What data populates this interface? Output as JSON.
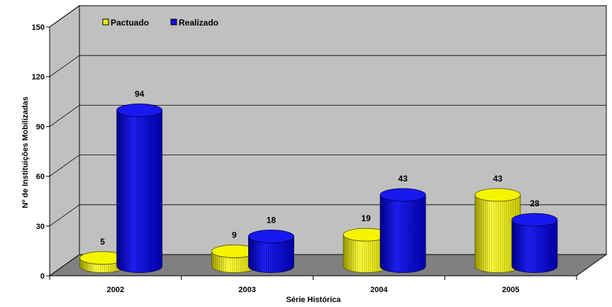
{
  "chart_data": {
    "type": "bar",
    "categories": [
      "2002",
      "2003",
      "2004",
      "2005"
    ],
    "series": [
      {
        "name": "Pactuado",
        "values": [
          5,
          9,
          19,
          43
        ],
        "color": "#f2f200"
      },
      {
        "name": "Realizado",
        "values": [
          94,
          18,
          43,
          28
        ],
        "color": "#1010e0"
      }
    ],
    "xlabel": "Série Histórica",
    "ylabel": "Nº de Instituições Mobilizadas",
    "ylim": [
      0,
      150
    ],
    "yticks": [
      0,
      30,
      60,
      90,
      120,
      150
    ],
    "grid": true,
    "legend_position": "top-left",
    "style": "3d-cylinder",
    "colors": {
      "walls": "#c0c0c0",
      "floor": "#808080",
      "grid": "#000000"
    }
  }
}
